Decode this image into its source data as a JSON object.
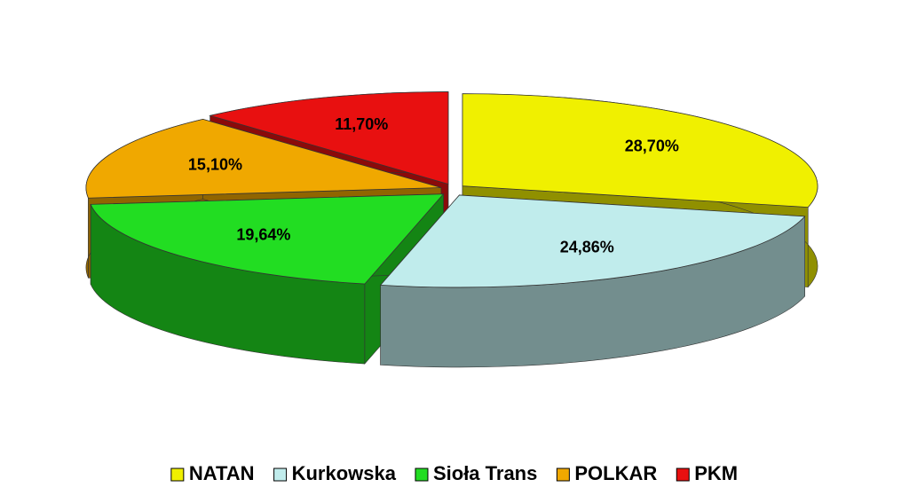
{
  "chart_data": {
    "type": "pie3d",
    "categories": [
      "NATAN",
      "Kurkowska",
      "Sioła Trans",
      "POLKAR",
      "PKM"
    ],
    "values": [
      28.7,
      24.86,
      19.64,
      15.1,
      11.7
    ],
    "value_labels": [
      "28,70%",
      "24,86%",
      "19,64%",
      "15,10%",
      "11,70%"
    ],
    "colors": [
      "#f0f000",
      "#c0ecec",
      "#22dd22",
      "#f0a800",
      "#e81010"
    ],
    "legend": "bottom"
  }
}
